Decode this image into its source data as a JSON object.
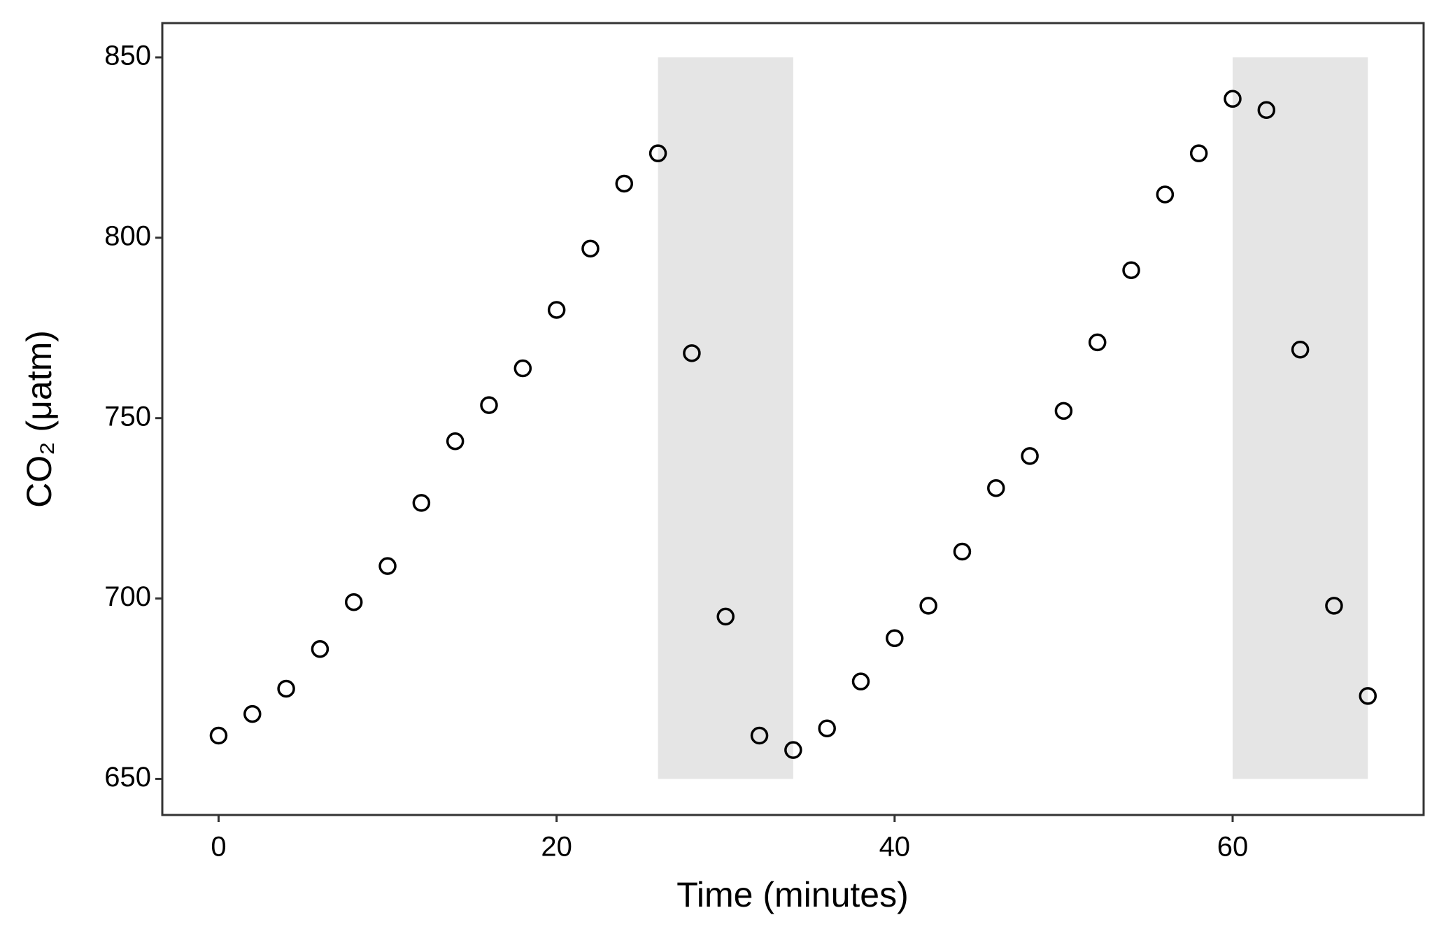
{
  "chart_data": {
    "type": "scatter",
    "x_label": "Time (minutes)",
    "y_label": "CO₂ (μatm)",
    "x": [
      0,
      2,
      4,
      6,
      8,
      10,
      12,
      14,
      16,
      18,
      20,
      22,
      24,
      26,
      28,
      30,
      32,
      34,
      36,
      38,
      40,
      42,
      44,
      46,
      48,
      50,
      52,
      54,
      56,
      58,
      60,
      62,
      64,
      66,
      68
    ],
    "values": [
      662,
      668,
      675,
      686,
      699,
      709,
      726.5,
      743.6,
      753.6,
      763.8,
      780,
      797,
      815,
      823.4,
      768,
      695,
      662,
      658,
      664,
      677,
      689,
      698,
      713,
      730.6,
      739.5,
      752,
      771,
      791,
      812,
      823.4,
      838.5,
      835.4,
      769,
      698,
      673
    ],
    "color": "#000000",
    "shaded_regions": [
      {
        "x": [
          26,
          34
        ],
        "y": [
          650,
          850
        ]
      },
      {
        "x": [
          60,
          68
        ],
        "y": [
          650,
          850
        ]
      }
    ],
    "shade_color": "#e5e5e5",
    "xlim": [
      -3.33,
      71.3
    ],
    "ylim": [
      640,
      859.5
    ],
    "xticks": [
      0,
      20,
      40,
      60
    ],
    "yticks": [
      650,
      700,
      750,
      800,
      850
    ],
    "grid": false
  }
}
